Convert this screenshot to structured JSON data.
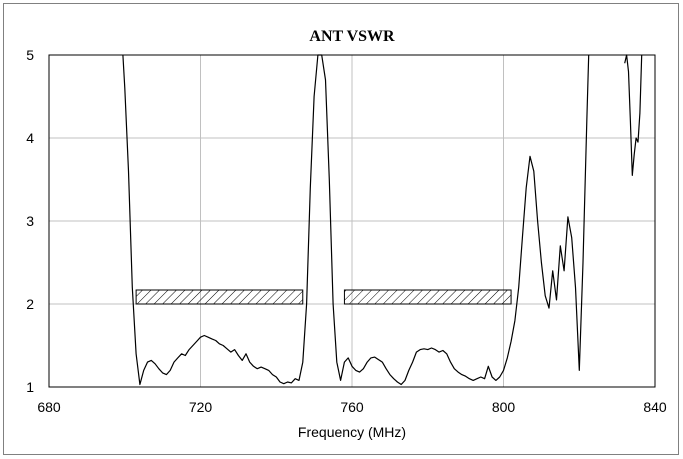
{
  "chart_data": {
    "type": "line",
    "title": "ANT VSWR",
    "xlabel": "Frequency (MHz)",
    "ylabel": "",
    "xlim": [
      680,
      840
    ],
    "ylim": [
      1,
      5
    ],
    "x_ticks": [
      680,
      720,
      760,
      800,
      840
    ],
    "y_ticks": [
      1,
      2,
      3,
      4,
      5
    ],
    "grid": true,
    "legend": "none",
    "colors": {
      "line": "#000000",
      "grid": "#c0c0c0",
      "frame": "#808080"
    },
    "spec_bands": [
      {
        "x_start": 703,
        "x_end": 747,
        "vswr_limit": 2.0
      },
      {
        "x_start": 758,
        "x_end": 802,
        "vswr_limit": 2.0
      }
    ],
    "series": [
      {
        "values": [
          [
            699.5,
            5.0
          ],
          [
            700,
            4.6
          ],
          [
            701,
            3.6
          ],
          [
            702,
            2.2
          ],
          [
            703,
            1.4
          ],
          [
            704,
            1.03
          ],
          [
            705,
            1.2
          ],
          [
            706,
            1.3
          ],
          [
            707,
            1.32
          ],
          [
            708,
            1.28
          ],
          [
            709,
            1.22
          ],
          [
            710,
            1.17
          ],
          [
            711,
            1.15
          ],
          [
            712,
            1.2
          ],
          [
            713,
            1.3
          ],
          [
            714,
            1.35
          ],
          [
            715,
            1.4
          ],
          [
            716,
            1.38
          ],
          [
            717,
            1.45
          ],
          [
            718,
            1.5
          ],
          [
            719,
            1.55
          ],
          [
            720,
            1.6
          ],
          [
            721,
            1.62
          ],
          [
            722,
            1.6
          ],
          [
            723,
            1.58
          ],
          [
            724,
            1.56
          ],
          [
            725,
            1.52
          ],
          [
            726,
            1.5
          ],
          [
            727,
            1.46
          ],
          [
            728,
            1.42
          ],
          [
            729,
            1.45
          ],
          [
            730,
            1.38
          ],
          [
            731,
            1.32
          ],
          [
            732,
            1.4
          ],
          [
            733,
            1.3
          ],
          [
            734,
            1.25
          ],
          [
            735,
            1.22
          ],
          [
            736,
            1.24
          ],
          [
            737,
            1.22
          ],
          [
            738,
            1.2
          ],
          [
            739,
            1.15
          ],
          [
            740,
            1.12
          ],
          [
            741,
            1.06
          ],
          [
            742,
            1.04
          ],
          [
            743,
            1.06
          ],
          [
            744,
            1.05
          ],
          [
            745,
            1.1
          ],
          [
            746,
            1.08
          ],
          [
            747,
            1.3
          ],
          [
            748,
            2.0
          ],
          [
            749,
            3.4
          ],
          [
            750,
            4.5
          ],
          [
            751,
            5.0
          ],
          [
            752,
            5.0
          ],
          [
            753,
            4.7
          ],
          [
            754,
            3.5
          ],
          [
            755,
            2.0
          ],
          [
            756,
            1.3
          ],
          [
            757,
            1.08
          ],
          [
            758,
            1.3
          ],
          [
            759,
            1.35
          ],
          [
            760,
            1.25
          ],
          [
            761,
            1.2
          ],
          [
            762,
            1.18
          ],
          [
            763,
            1.22
          ],
          [
            764,
            1.3
          ],
          [
            765,
            1.35
          ],
          [
            766,
            1.36
          ],
          [
            767,
            1.33
          ],
          [
            768,
            1.3
          ],
          [
            769,
            1.22
          ],
          [
            770,
            1.15
          ],
          [
            771,
            1.1
          ],
          [
            772,
            1.06
          ],
          [
            773,
            1.03
          ],
          [
            774,
            1.08
          ],
          [
            775,
            1.2
          ],
          [
            776,
            1.3
          ],
          [
            777,
            1.42
          ],
          [
            778,
            1.45
          ],
          [
            779,
            1.46
          ],
          [
            780,
            1.45
          ],
          [
            781,
            1.47
          ],
          [
            782,
            1.45
          ],
          [
            783,
            1.42
          ],
          [
            784,
            1.44
          ],
          [
            785,
            1.4
          ],
          [
            786,
            1.3
          ],
          [
            787,
            1.22
          ],
          [
            788,
            1.18
          ],
          [
            789,
            1.15
          ],
          [
            790,
            1.13
          ],
          [
            791,
            1.1
          ],
          [
            792,
            1.08
          ],
          [
            793,
            1.1
          ],
          [
            794,
            1.12
          ],
          [
            795,
            1.1
          ],
          [
            796,
            1.25
          ],
          [
            797,
            1.12
          ],
          [
            798,
            1.08
          ],
          [
            799,
            1.12
          ],
          [
            800,
            1.2
          ],
          [
            801,
            1.35
          ],
          [
            802,
            1.55
          ],
          [
            803,
            1.8
          ],
          [
            804,
            2.2
          ],
          [
            805,
            2.8
          ],
          [
            806,
            3.4
          ],
          [
            807,
            3.78
          ],
          [
            808,
            3.6
          ],
          [
            809,
            3.0
          ],
          [
            810,
            2.5
          ],
          [
            811,
            2.1
          ],
          [
            812,
            1.95
          ],
          [
            813,
            2.4
          ],
          [
            814,
            2.05
          ],
          [
            815,
            2.7
          ],
          [
            816,
            2.4
          ],
          [
            817,
            3.05
          ],
          [
            818,
            2.8
          ],
          [
            819,
            2.2
          ],
          [
            820,
            1.2
          ],
          [
            821,
            2.5
          ],
          [
            822,
            4.2
          ],
          [
            822.5,
            5.0
          ]
        ]
      },
      {
        "values": [
          [
            832,
            4.9
          ],
          [
            832.5,
            5.0
          ],
          [
            833,
            4.8
          ],
          [
            833.5,
            4.2
          ],
          [
            834,
            3.55
          ],
          [
            834.5,
            3.8
          ],
          [
            835,
            4.0
          ],
          [
            835.5,
            3.95
          ],
          [
            836,
            4.3
          ],
          [
            836.5,
            5.0
          ]
        ]
      }
    ]
  }
}
